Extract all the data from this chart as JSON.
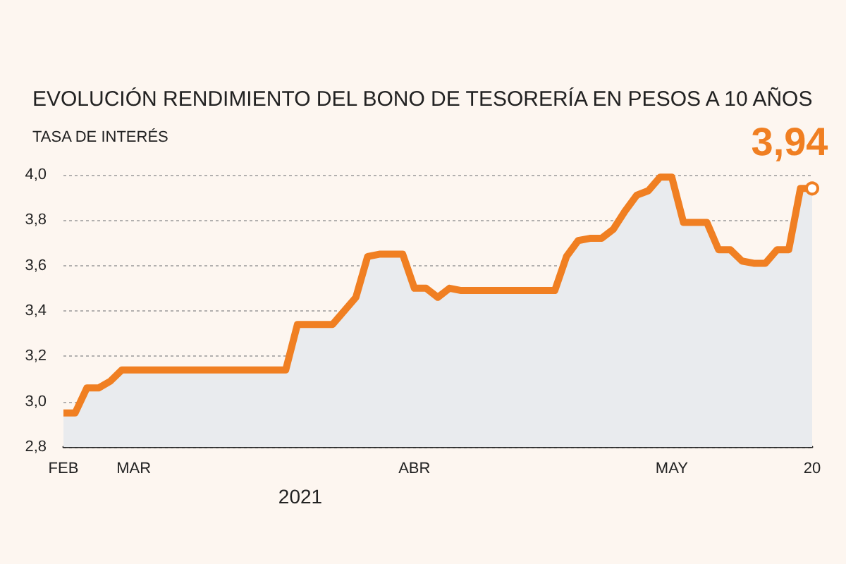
{
  "chart_data": {
    "type": "area",
    "title": "EVOLUCIÓN RENDIMIENTO DEL BONO DE TESORERÍA EN PESOS A 10 AÑOS",
    "ylabel": "TASA DE INTERÉS",
    "xlabel": "2021",
    "categories": [
      "FEB",
      null,
      null,
      null,
      null,
      null,
      "MAR",
      null,
      null,
      null,
      null,
      null,
      null,
      null,
      null,
      null,
      null,
      null,
      null,
      null,
      null,
      null,
      null,
      null,
      null,
      null,
      null,
      null,
      null,
      null,
      "ABR",
      null,
      null,
      null,
      null,
      null,
      null,
      null,
      null,
      null,
      null,
      null,
      null,
      null,
      null,
      null,
      null,
      null,
      null,
      null,
      null,
      null,
      "MAY",
      null,
      null,
      null,
      null,
      null,
      null,
      null,
      null,
      null,
      null,
      null,
      "20"
    ],
    "series": [
      {
        "color": "#f07f22",
        "values": [
          2.95,
          2.95,
          3.06,
          3.06,
          3.09,
          3.14,
          3.14,
          3.14,
          3.14,
          3.14,
          3.14,
          3.14,
          3.14,
          3.14,
          3.14,
          3.14,
          3.14,
          3.14,
          3.14,
          3.14,
          3.34,
          3.34,
          3.34,
          3.34,
          3.4,
          3.46,
          3.64,
          3.65,
          3.65,
          3.65,
          3.5,
          3.5,
          3.46,
          3.5,
          3.49,
          3.49,
          3.49,
          3.49,
          3.49,
          3.49,
          3.49,
          3.49,
          3.49,
          3.64,
          3.71,
          3.72,
          3.72,
          3.76,
          3.84,
          3.91,
          3.93,
          3.99,
          3.99,
          3.79,
          3.79,
          3.79,
          3.67,
          3.67,
          3.62,
          3.61,
          3.61,
          3.67,
          3.67,
          3.94,
          3.94
        ]
      }
    ],
    "ylim": [
      2.8,
      4.0
    ],
    "yticks": [
      {
        "value": 2.8,
        "label": "2,8"
      },
      {
        "value": 3.0,
        "label": "3,0"
      },
      {
        "value": 3.2,
        "label": "3,2"
      },
      {
        "value": 3.4,
        "label": "3,4"
      },
      {
        "value": 3.6,
        "label": "3,6"
      },
      {
        "value": 3.8,
        "label": "3,8"
      },
      {
        "value": 4.0,
        "label": "4,0"
      }
    ],
    "grid": "y",
    "marker": "none",
    "annotations": [
      {
        "text": "3,94",
        "x": "20",
        "y": 3.94
      }
    ]
  }
}
